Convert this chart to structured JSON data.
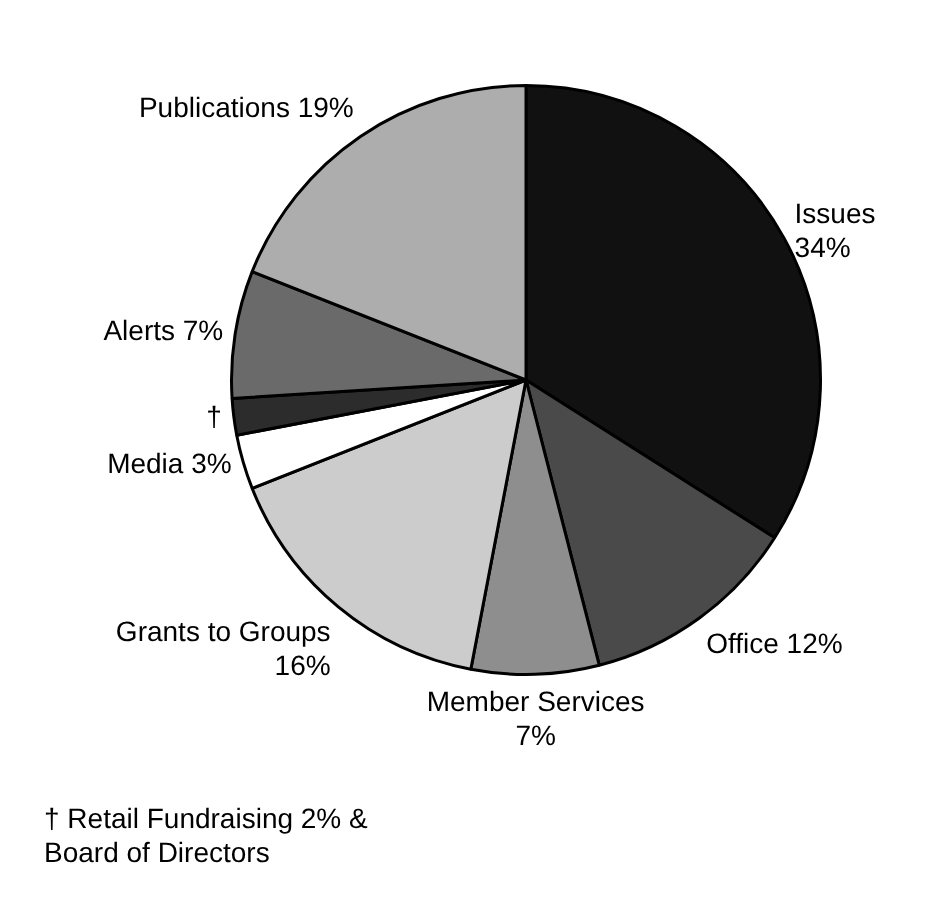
{
  "chart_data": {
    "type": "pie",
    "categories": [
      "Issues",
      "Office",
      "Member Services",
      "Grants to Groups",
      "Media",
      "†",
      "Alerts",
      "Publications"
    ],
    "values": [
      34,
      12,
      7,
      16,
      3,
      2,
      7,
      19
    ],
    "value_labels": [
      "34%",
      "12%",
      "7%",
      "16%",
      "3%",
      null,
      "7%",
      "19%"
    ],
    "colors": [
      "#111111",
      "#4a4a4a",
      "#8e8e8e",
      "#cccccc",
      "#ffffff",
      "#2c2c2c",
      "#6a6a6a",
      "#adadad"
    ],
    "annotations": [
      "† Retail Fundraising 2% & Board of Directors"
    ],
    "legend": false
  }
}
